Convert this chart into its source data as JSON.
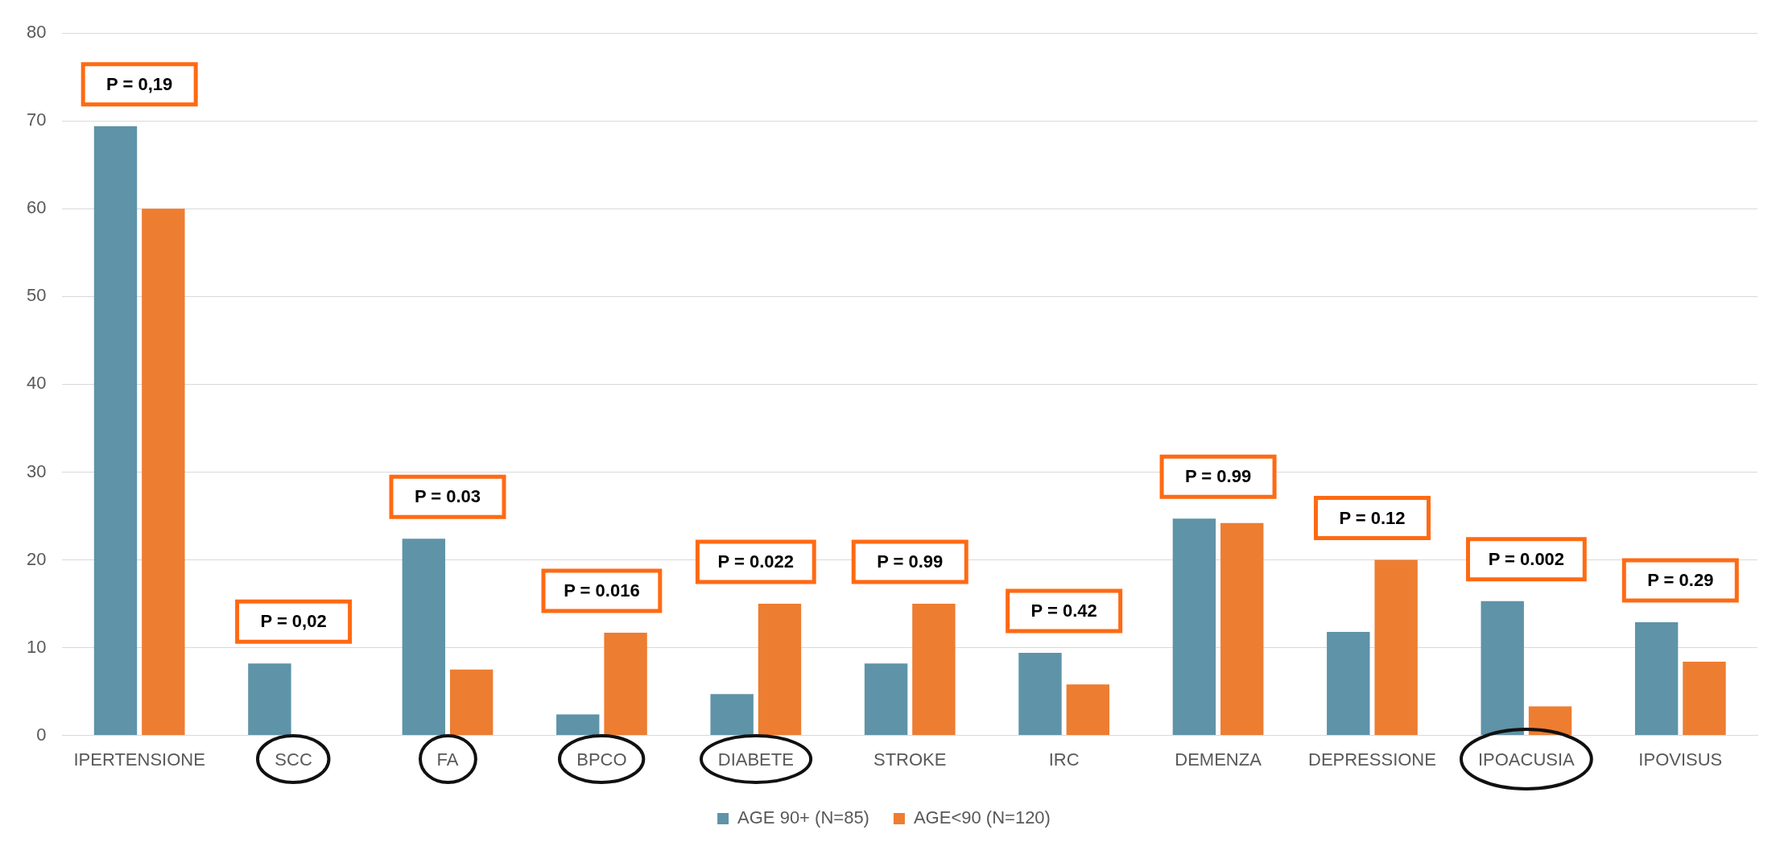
{
  "chart_data": {
    "type": "bar",
    "categories": [
      "IPERTENSIONE",
      "SCC",
      "FA",
      "BPCO",
      "DIABETE",
      "STROKE",
      "IRC",
      "DEMENZA",
      "DEPRESSIONE",
      "IPOACUSIA",
      "IPOVISUS"
    ],
    "series": [
      {
        "name": "AGE 90+ (N=85)",
        "color": "#5f93a8",
        "values": [
          69.4,
          8.2,
          22.4,
          2.4,
          4.7,
          8.2,
          9.4,
          24.7,
          11.8,
          15.3,
          12.9
        ]
      },
      {
        "name": "AGE<90 (N=120)",
        "color": "#ed7d31",
        "values": [
          60,
          0,
          7.5,
          11.7,
          15,
          15,
          5.8,
          24.2,
          20,
          3.3,
          8.4
        ]
      }
    ],
    "ylim": [
      0,
      80
    ],
    "yticks": [
      0,
      10,
      20,
      30,
      40,
      50,
      60,
      70,
      80
    ],
    "grid": "y",
    "legend": "bottom",
    "annotations": [
      "P = 0,19",
      "P = 0,02",
      "P = 0.03",
      "P = 0.016",
      "P = 0.022",
      "P = 0.99",
      "P = 0.42",
      "P = 0.99",
      "P = 0.12",
      "P = 0.002",
      "P = 0.29"
    ]
  }
}
